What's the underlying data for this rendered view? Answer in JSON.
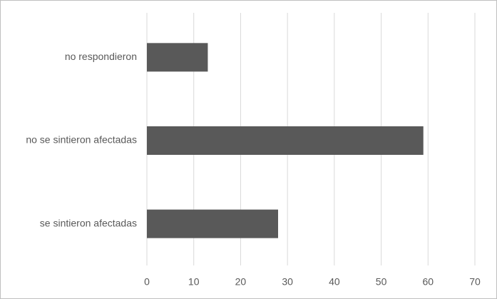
{
  "chart_data": {
    "type": "bar",
    "orientation": "horizontal",
    "categories": [
      "no respondieron",
      "no se sintieron afectadas",
      "se sintieron afectadas"
    ],
    "values": [
      13,
      59,
      28
    ],
    "color": "#595959",
    "xlim": [
      0,
      70
    ],
    "xticks": [
      0,
      10,
      20,
      30,
      40,
      50,
      60,
      70
    ],
    "grid": true
  }
}
